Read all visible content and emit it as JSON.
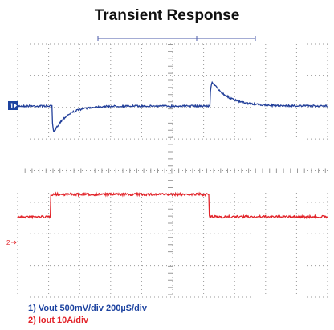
{
  "title": "Transient Response",
  "channel_markers": [
    "1",
    "2"
  ],
  "captions": [
    "1) Vout 500mV/div  200µS/div",
    "2) Iout 10A/div"
  ]
}
